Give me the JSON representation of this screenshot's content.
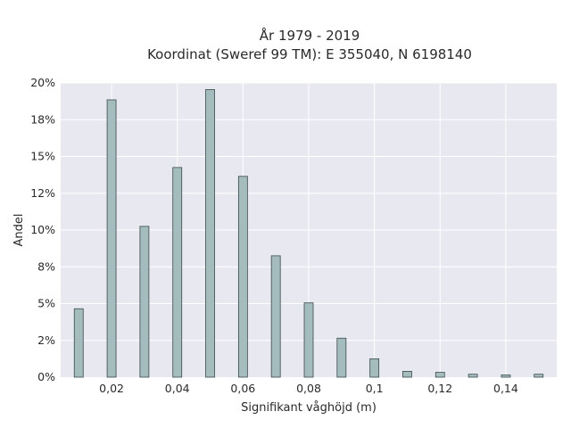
{
  "chart_data": {
    "type": "bar",
    "title_line1": "År 1979 - 2019",
    "title_line2": "Koordinat (Sweref 99 TM): E 355040, N 6198140",
    "xlabel": "Signifikant våghöjd (m)",
    "ylabel": "Andel",
    "x": [
      0.01,
      0.02,
      0.03,
      0.04,
      0.05,
      0.06,
      0.07,
      0.08,
      0.09,
      0.1,
      0.11,
      0.12,
      0.13,
      0.14,
      0.15
    ],
    "values": [
      0.0465,
      0.1885,
      0.1025,
      0.1425,
      0.1955,
      0.1365,
      0.0825,
      0.0505,
      0.0265,
      0.0125,
      0.004,
      0.0033,
      0.002,
      0.0015,
      0.002
    ],
    "xlim": [
      0.0045,
      0.1555
    ],
    "ylim": [
      0,
      0.2
    ],
    "xticks": [
      0.02,
      0.04,
      0.06,
      0.08,
      0.1,
      0.12,
      0.14
    ],
    "xtick_labels": [
      "0,02",
      "0,04",
      "0,06",
      "0,08",
      "0,1",
      "0,12",
      "0,14"
    ],
    "yticks": [
      0,
      0.025,
      0.05,
      0.075,
      0.1,
      0.125,
      0.15,
      0.175,
      0.2
    ],
    "ytick_labels": [
      "0%",
      "2%",
      "5%",
      "8%",
      "10%",
      "12%",
      "15%",
      "18%",
      "20%"
    ],
    "grid": true,
    "colors": {
      "plot_bg": "#e8e8f0",
      "grid": "#ffffff",
      "bar_fill": "#a5bcbe",
      "bar_stroke": "#3a4a4c"
    }
  }
}
